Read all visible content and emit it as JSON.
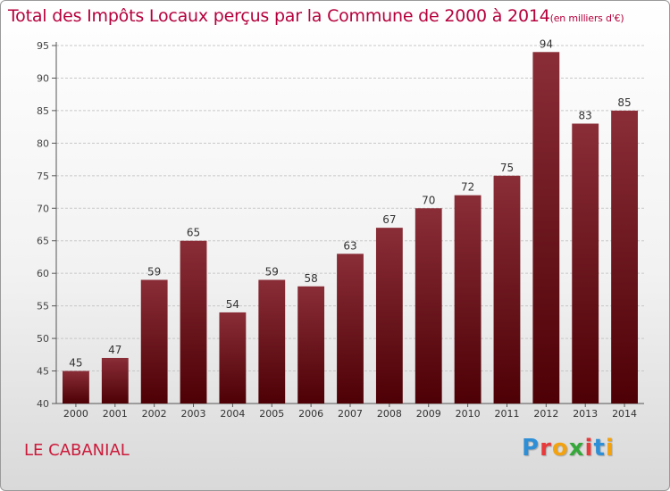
{
  "header": {
    "title": "Total des Impôts Locaux perçus par la Commune de 2000 à 2014",
    "unit": "(en milliers d'€)"
  },
  "footer": {
    "commune": "LE CABANIAL",
    "logo_text": "Proxiti",
    "logo_letters": [
      "P",
      "r",
      "o",
      "x",
      "i",
      "t",
      "i"
    ]
  },
  "colors": {
    "bar_top": "#8a2d37",
    "bar_bottom": "#4d0005",
    "title": "#b5003c",
    "grid": "#c8c8c8"
  },
  "chart_data": {
    "type": "bar",
    "title": "Total des Impôts Locaux perçus par la Commune de 2000 à 2014",
    "xlabel": "",
    "ylabel": "",
    "ylim": [
      40,
      95
    ],
    "yticks": [
      40,
      45,
      50,
      55,
      60,
      65,
      70,
      75,
      80,
      85,
      90,
      95
    ],
    "categories": [
      "2000",
      "2001",
      "2002",
      "2003",
      "2004",
      "2005",
      "2006",
      "2007",
      "2008",
      "2009",
      "2010",
      "2011",
      "2012",
      "2013",
      "2014"
    ],
    "values": [
      45,
      47,
      59,
      65,
      54,
      59,
      58,
      63,
      67,
      70,
      72,
      75,
      94,
      83,
      85
    ],
    "grid": true
  }
}
